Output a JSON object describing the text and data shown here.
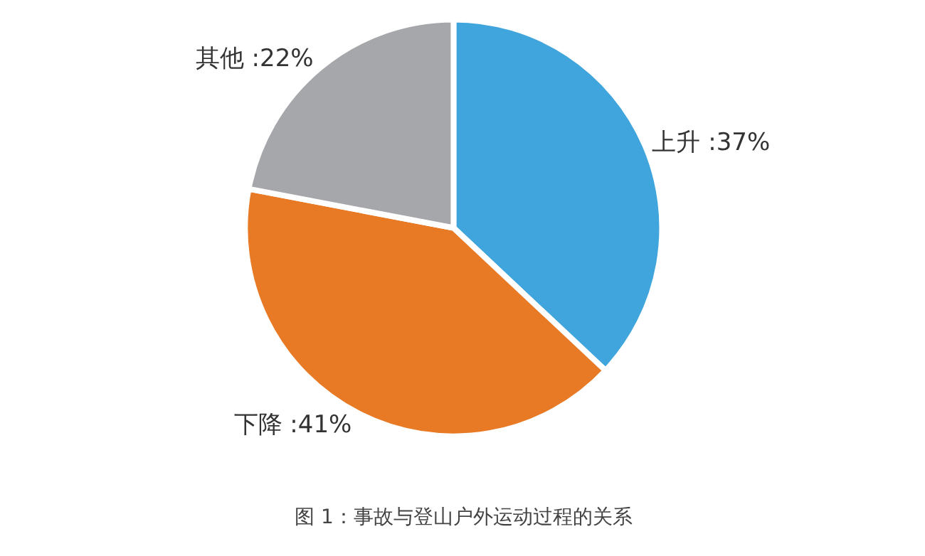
{
  "chart_data": {
    "type": "pie",
    "categories": [
      "上升",
      "下降",
      "其他"
    ],
    "values": [
      37,
      41,
      22
    ],
    "colors": [
      "#41a5dd",
      "#e87a25",
      "#a6a7ab"
    ],
    "value_labels": [
      ":37%",
      ":41%",
      ":22%"
    ],
    "annotations": [
      "图 1：事故与登山户外运动过程的关系"
    ],
    "legend": false
  }
}
